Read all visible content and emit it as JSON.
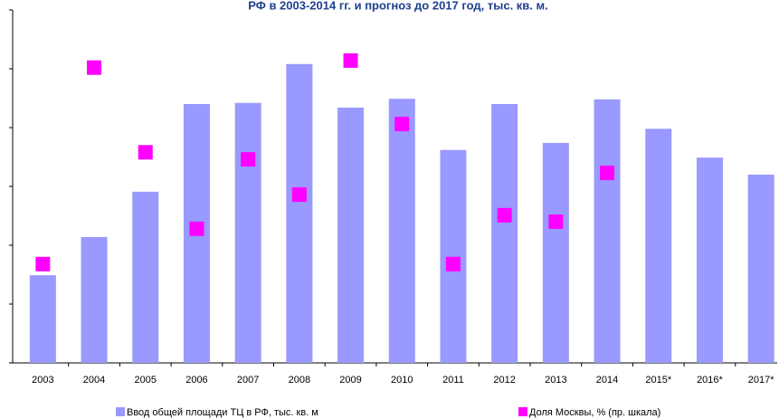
{
  "chart_data": {
    "type": "bar",
    "title": "РФ в 2003-2014 гг. и прогноз до 2017 год, тыс. кв. м.",
    "categories": [
      "2003",
      "2004",
      "2005",
      "2006",
      "2007",
      "2008",
      "2009",
      "2010",
      "2011",
      "2012",
      "2013",
      "2014",
      "2015*",
      "2016*",
      "2017*"
    ],
    "series": [
      {
        "name": "Ввод общей площади ТЦ в РФ, тыс. кв. м",
        "type": "bar",
        "color": "#9999ff",
        "values": [
          1.49,
          2.14,
          2.91,
          4.4,
          4.42,
          5.08,
          4.34,
          4.49,
          3.62,
          4.4,
          3.74,
          4.48,
          3.98,
          3.49,
          3.2
        ]
      },
      {
        "name": "Доля Москвы, % (пр. шкала)",
        "type": "scatter",
        "axis": "y2",
        "color": "#ff00ff",
        "values": [
          1.68,
          5.02,
          3.58,
          2.28,
          3.46,
          2.86,
          5.14,
          4.06,
          1.68,
          2.51,
          2.4,
          3.23,
          null,
          null,
          null
        ]
      }
    ],
    "ylim": [
      0,
      6
    ],
    "yticks": [
      0,
      1,
      2,
      3,
      4,
      5,
      6
    ],
    "y2lim": [
      0,
      6
    ]
  }
}
